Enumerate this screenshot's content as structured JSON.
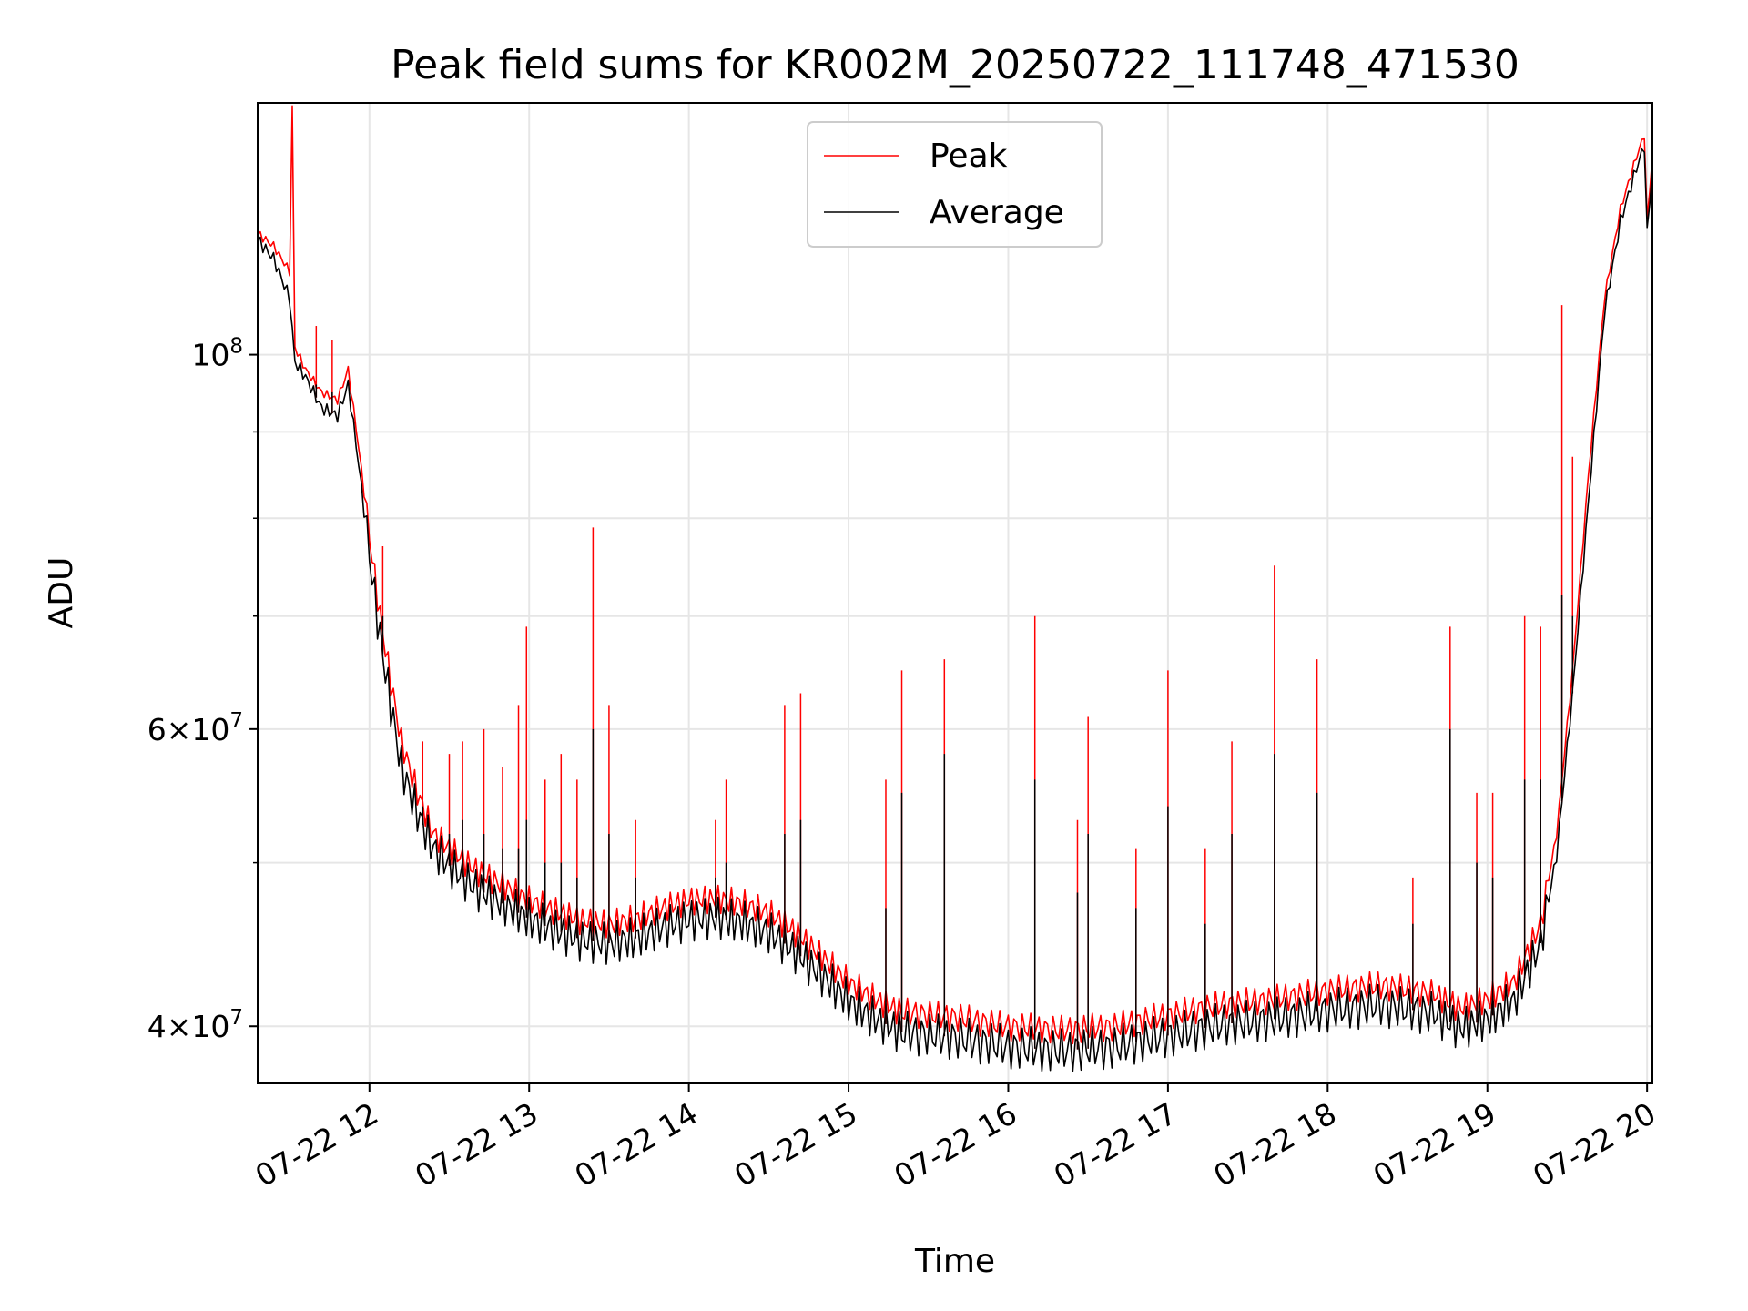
{
  "chart_data": {
    "type": "line",
    "title": "Peak field sums for KR002M_20250722_111748_471530",
    "xlabel": "Time",
    "ylabel": "ADU",
    "y_scale": "log",
    "x_range": [
      "2025-07-22 11:18",
      "2025-07-22 20:02"
    ],
    "ylim": [
      37000000,
      141000000
    ],
    "x_ticks": [
      {
        "time": "2025-07-22 12:00",
        "label": "07-22 12"
      },
      {
        "time": "2025-07-22 13:00",
        "label": "07-22 13"
      },
      {
        "time": "2025-07-22 14:00",
        "label": "07-22 14"
      },
      {
        "time": "2025-07-22 15:00",
        "label": "07-22 15"
      },
      {
        "time": "2025-07-22 16:00",
        "label": "07-22 16"
      },
      {
        "time": "2025-07-22 17:00",
        "label": "07-22 17"
      },
      {
        "time": "2025-07-22 18:00",
        "label": "07-22 18"
      },
      {
        "time": "2025-07-22 19:00",
        "label": "07-22 19"
      },
      {
        "time": "2025-07-22 20:00",
        "label": "07-22 20"
      }
    ],
    "y_major_ticks": [
      {
        "value": 40000000,
        "mantissa": "4",
        "exponent": "7"
      },
      {
        "value": 60000000,
        "mantissa": "6",
        "exponent": "7"
      },
      {
        "value": 100000000,
        "mantissa": "",
        "exponent": "8"
      }
    ],
    "y_minor_ticks": [
      50000000,
      70000000,
      80000000,
      90000000
    ],
    "grid": true,
    "legend_position": "upper-center",
    "series": [
      {
        "name": "Peak",
        "color": "#ff0000",
        "points": [
          [
            "2025-07-22 11:18",
            118000000
          ],
          [
            "2025-07-22 11:24",
            116000000
          ],
          [
            "2025-07-22 11:30",
            112000000
          ],
          [
            "2025-07-22 11:31",
            140000000
          ],
          [
            "2025-07-22 11:32",
            101000000
          ],
          [
            "2025-07-22 11:36",
            98000000
          ],
          [
            "2025-07-22 11:42",
            95000000
          ],
          [
            "2025-07-22 11:48",
            94000000
          ],
          [
            "2025-07-22 11:52",
            98000000
          ],
          [
            "2025-07-22 11:56",
            88000000
          ],
          [
            "2025-07-22 12:00",
            78000000
          ],
          [
            "2025-07-22 12:04",
            70000000
          ],
          [
            "2025-07-22 12:08",
            64000000
          ],
          [
            "2025-07-22 12:12",
            59000000
          ],
          [
            "2025-07-22 12:18",
            55000000
          ],
          [
            "2025-07-22 12:24",
            52000000
          ],
          [
            "2025-07-22 12:30",
            51000000
          ],
          [
            "2025-07-22 12:40",
            49500000
          ],
          [
            "2025-07-22 12:50",
            48500000
          ],
          [
            "2025-07-22 13:00",
            47500000
          ],
          [
            "2025-07-22 13:10",
            46800000
          ],
          [
            "2025-07-22 13:20",
            46200000
          ],
          [
            "2025-07-22 13:30",
            46000000
          ],
          [
            "2025-07-22 13:40",
            46300000
          ],
          [
            "2025-07-22 13:50",
            47000000
          ],
          [
            "2025-07-22 14:00",
            47500000
          ],
          [
            "2025-07-22 14:10",
            47600000
          ],
          [
            "2025-07-22 14:20",
            47300000
          ],
          [
            "2025-07-22 14:30",
            46700000
          ],
          [
            "2025-07-22 14:40",
            45500000
          ],
          [
            "2025-07-22 14:50",
            44000000
          ],
          [
            "2025-07-22 15:00",
            42500000
          ],
          [
            "2025-07-22 15:10",
            41500000
          ],
          [
            "2025-07-22 15:20",
            40800000
          ],
          [
            "2025-07-22 15:40",
            40500000
          ],
          [
            "2025-07-22 16:00",
            40000000
          ],
          [
            "2025-07-22 16:20",
            39800000
          ],
          [
            "2025-07-22 16:40",
            40000000
          ],
          [
            "2025-07-22 17:00",
            40600000
          ],
          [
            "2025-07-22 17:20",
            41200000
          ],
          [
            "2025-07-22 17:40",
            41500000
          ],
          [
            "2025-07-22 18:00",
            42000000
          ],
          [
            "2025-07-22 18:20",
            42300000
          ],
          [
            "2025-07-22 18:40",
            41800000
          ],
          [
            "2025-07-22 18:50",
            41000000
          ],
          [
            "2025-07-22 19:00",
            41500000
          ],
          [
            "2025-07-22 19:10",
            42500000
          ],
          [
            "2025-07-22 19:20",
            46000000
          ],
          [
            "2025-07-22 19:26",
            52000000
          ],
          [
            "2025-07-22 19:32",
            65000000
          ],
          [
            "2025-07-22 19:38",
            85000000
          ],
          [
            "2025-07-22 19:44",
            108000000
          ],
          [
            "2025-07-22 19:50",
            122000000
          ],
          [
            "2025-07-22 19:56",
            131000000
          ],
          [
            "2025-07-22 19:59",
            135000000
          ],
          [
            "2025-07-22 20:00",
            120000000
          ],
          [
            "2025-07-22 20:02",
            131000000
          ]
        ]
      },
      {
        "name": "Average",
        "color": "#000000",
        "points": [
          [
            "2025-07-22 11:18",
            117000000
          ],
          [
            "2025-07-22 11:24",
            114000000
          ],
          [
            "2025-07-22 11:30",
            108000000
          ],
          [
            "2025-07-22 11:32",
            99000000
          ],
          [
            "2025-07-22 11:36",
            97000000
          ],
          [
            "2025-07-22 11:42",
            93000000
          ],
          [
            "2025-07-22 11:48",
            92000000
          ],
          [
            "2025-07-22 11:52",
            96000000
          ],
          [
            "2025-07-22 11:56",
            86000000
          ],
          [
            "2025-07-22 12:00",
            76000000
          ],
          [
            "2025-07-22 12:04",
            68000000
          ],
          [
            "2025-07-22 12:08",
            62000000
          ],
          [
            "2025-07-22 12:12",
            57000000
          ],
          [
            "2025-07-22 12:18",
            53500000
          ],
          [
            "2025-07-22 12:24",
            51000000
          ],
          [
            "2025-07-22 12:30",
            49800000
          ],
          [
            "2025-07-22 12:40",
            48300000
          ],
          [
            "2025-07-22 12:50",
            47300000
          ],
          [
            "2025-07-22 13:00",
            46300000
          ],
          [
            "2025-07-22 13:10",
            45600000
          ],
          [
            "2025-07-22 13:20",
            45000000
          ],
          [
            "2025-07-22 13:30",
            44800000
          ],
          [
            "2025-07-22 13:40",
            45100000
          ],
          [
            "2025-07-22 13:50",
            45800000
          ],
          [
            "2025-07-22 14:00",
            46300000
          ],
          [
            "2025-07-22 14:10",
            46400000
          ],
          [
            "2025-07-22 14:20",
            46100000
          ],
          [
            "2025-07-22 14:30",
            45500000
          ],
          [
            "2025-07-22 14:40",
            44300000
          ],
          [
            "2025-07-22 14:50",
            42900000
          ],
          [
            "2025-07-22 15:00",
            41400000
          ],
          [
            "2025-07-22 15:10",
            40400000
          ],
          [
            "2025-07-22 15:20",
            39700000
          ],
          [
            "2025-07-22 15:40",
            39400000
          ],
          [
            "2025-07-22 16:00",
            38900000
          ],
          [
            "2025-07-22 16:20",
            38700000
          ],
          [
            "2025-07-22 16:40",
            38900000
          ],
          [
            "2025-07-22 17:00",
            39500000
          ],
          [
            "2025-07-22 17:20",
            40100000
          ],
          [
            "2025-07-22 17:40",
            40400000
          ],
          [
            "2025-07-22 18:00",
            40900000
          ],
          [
            "2025-07-22 18:20",
            41200000
          ],
          [
            "2025-07-22 18:40",
            40700000
          ],
          [
            "2025-07-22 18:50",
            39900000
          ],
          [
            "2025-07-22 19:00",
            40400000
          ],
          [
            "2025-07-22 19:10",
            41400000
          ],
          [
            "2025-07-22 19:20",
            44800000
          ],
          [
            "2025-07-22 19:26",
            50500000
          ],
          [
            "2025-07-22 19:32",
            63000000
          ],
          [
            "2025-07-22 19:38",
            82000000
          ],
          [
            "2025-07-22 19:44",
            106000000
          ],
          [
            "2025-07-22 19:50",
            120000000
          ],
          [
            "2025-07-22 19:56",
            129000000
          ],
          [
            "2025-07-22 19:59",
            133000000
          ],
          [
            "2025-07-22 20:00",
            118000000
          ],
          [
            "2025-07-22 20:02",
            129000000
          ]
        ]
      }
    ],
    "peak_spikes": [
      [
        "2025-07-22 11:40",
        104000000,
        96000000
      ],
      [
        "2025-07-22 11:46",
        102000000,
        95000000
      ],
      [
        "2025-07-22 12:05",
        77000000,
        70000000
      ],
      [
        "2025-07-22 12:20",
        59000000,
        54000000
      ],
      [
        "2025-07-22 12:30",
        58000000,
        52000000
      ],
      [
        "2025-07-22 12:35",
        59000000,
        53000000
      ],
      [
        "2025-07-22 12:43",
        60000000,
        52000000
      ],
      [
        "2025-07-22 12:50",
        57000000,
        51000000
      ],
      [
        "2025-07-22 12:56",
        62000000,
        51000000
      ],
      [
        "2025-07-22 12:59",
        69000000,
        53000000
      ],
      [
        "2025-07-22 13:06",
        56000000,
        50000000
      ],
      [
        "2025-07-22 13:12",
        58000000,
        50000000
      ],
      [
        "2025-07-22 13:18",
        56000000,
        49000000
      ],
      [
        "2025-07-22 13:24",
        79000000,
        60000000
      ],
      [
        "2025-07-22 13:30",
        62000000,
        52000000
      ],
      [
        "2025-07-22 13:40",
        53000000,
        49000000
      ],
      [
        "2025-07-22 14:10",
        53000000,
        49000000
      ],
      [
        "2025-07-22 14:14",
        56000000,
        50000000
      ],
      [
        "2025-07-22 14:36",
        62000000,
        52000000
      ],
      [
        "2025-07-22 14:42",
        63000000,
        53000000
      ],
      [
        "2025-07-22 15:14",
        56000000,
        47000000
      ],
      [
        "2025-07-22 15:20",
        65000000,
        55000000
      ],
      [
        "2025-07-22 15:36",
        66000000,
        58000000
      ],
      [
        "2025-07-22 16:10",
        70000000,
        56000000
      ],
      [
        "2025-07-22 16:26",
        53000000,
        48000000
      ],
      [
        "2025-07-22 16:30",
        61000000,
        52000000
      ],
      [
        "2025-07-22 16:48",
        51000000,
        47000000
      ],
      [
        "2025-07-22 17:00",
        65000000,
        54000000
      ],
      [
        "2025-07-22 17:14",
        51000000,
        46000000
      ],
      [
        "2025-07-22 17:24",
        59000000,
        52000000
      ],
      [
        "2025-07-22 17:40",
        75000000,
        58000000
      ],
      [
        "2025-07-22 17:56",
        66000000,
        55000000
      ],
      [
        "2025-07-22 18:32",
        49000000,
        46000000
      ],
      [
        "2025-07-22 18:46",
        69000000,
        60000000
      ],
      [
        "2025-07-22 18:56",
        55000000,
        50000000
      ],
      [
        "2025-07-22 19:02",
        55000000,
        49000000
      ],
      [
        "2025-07-22 19:14",
        70000000,
        56000000
      ],
      [
        "2025-07-22 19:20",
        69000000,
        56000000
      ],
      [
        "2025-07-22 19:28",
        107000000,
        72000000
      ],
      [
        "2025-07-22 19:32",
        87000000,
        70000000
      ]
    ]
  }
}
